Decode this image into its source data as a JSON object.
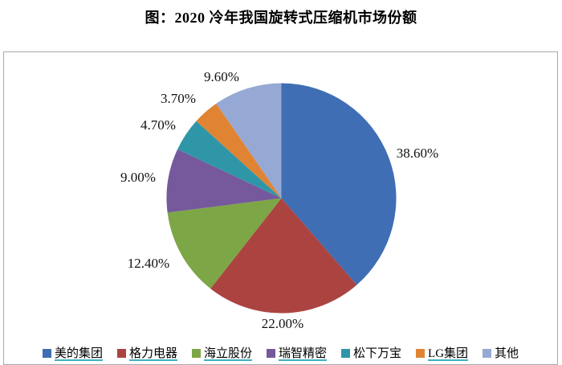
{
  "title": "图：2020 冷年我国旋转式压缩机市场份额",
  "chart_data": {
    "type": "pie",
    "title": "图：2020 冷年我国旋转式压缩机市场份额",
    "direction": "clockwise",
    "start_angle_deg": 0,
    "legend_position": "bottom",
    "legend_underline_color": "#3fb0c0",
    "frame_border_color": "#a9a9a9",
    "slices": [
      {
        "name": "美的集团",
        "value": 38.6,
        "label": "38.60%",
        "color": "#3f6eb4",
        "legend_underline": true
      },
      {
        "name": "格力电器",
        "value": 22.0,
        "label": "22.00%",
        "color": "#ab4441",
        "legend_underline": true
      },
      {
        "name": "海立股份",
        "value": 12.4,
        "label": "12.40%",
        "color": "#7da647",
        "legend_underline": true
      },
      {
        "name": "瑞智精密",
        "value": 9.0,
        "label": "9.00%",
        "color": "#75599c",
        "legend_underline": true
      },
      {
        "name": "松下万宝",
        "value": 4.7,
        "label": "4.70%",
        "color": "#2f96a8",
        "legend_underline": false
      },
      {
        "name": "LG集团",
        "value": 3.7,
        "label": "3.70%",
        "color": "#e08434",
        "legend_underline": true
      },
      {
        "name": "其他",
        "value": 9.6,
        "label": "9.60%",
        "color": "#95a9d4",
        "legend_underline": false
      }
    ]
  }
}
